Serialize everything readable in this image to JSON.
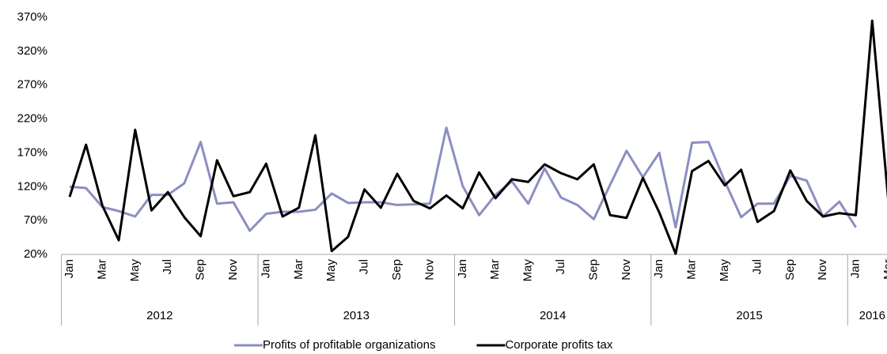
{
  "chart_data": {
    "type": "line",
    "categories": [
      "Jan",
      null,
      "Mar",
      null,
      "May",
      null,
      "Jul",
      null,
      "Sep",
      null,
      "Nov",
      null,
      "Jan",
      null,
      "Mar",
      null,
      "May",
      null,
      "Jul",
      null,
      "Sep",
      null,
      "Nov",
      null,
      "Jan",
      null,
      "Mar",
      null,
      "May",
      null,
      "Jul",
      null,
      "Sep",
      null,
      "Nov",
      null,
      "Jan",
      null,
      "Mar",
      null,
      "May",
      null,
      "Jul",
      null,
      "Sep",
      null,
      "Nov",
      null,
      "Jan",
      null,
      "Mar"
    ],
    "groups": [
      "2012",
      "2013",
      "2014",
      "2015",
      "2016"
    ],
    "series": [
      {
        "name": "Profits of profitable organizations",
        "color": "#8b8ec3",
        "values": [
          120,
          118,
          90,
          84,
          76,
          108,
          108,
          125,
          186,
          95,
          97,
          55,
          80,
          83,
          83,
          86,
          110,
          96,
          97,
          97,
          93,
          94,
          95,
          207,
          121,
          78,
          108,
          128,
          95,
          147,
          104,
          93,
          72,
          123,
          173,
          134,
          170,
          60,
          185,
          186,
          128,
          75,
          95,
          95,
          136,
          129,
          76,
          98,
          60,
          null,
          null
        ]
      },
      {
        "name": "Corporate profits tax",
        "color": "#000000",
        "values": [
          105,
          182,
          92,
          41,
          204,
          85,
          112,
          75,
          47,
          159,
          106,
          112,
          154,
          76,
          89,
          196,
          25,
          46,
          116,
          89,
          139,
          99,
          88,
          107,
          88,
          141,
          103,
          131,
          127,
          153,
          140,
          131,
          153,
          78,
          74,
          133,
          82,
          21,
          143,
          158,
          122,
          145,
          68,
          84,
          144,
          99,
          76,
          81,
          78,
          365,
          95
        ]
      }
    ],
    "ylim": [
      20,
      370
    ],
    "yticks": [
      {
        "value": 20,
        "label": "20%"
      },
      {
        "value": 70,
        "label": "70%"
      },
      {
        "value": 120,
        "label": "120%"
      },
      {
        "value": 170,
        "label": "170%"
      },
      {
        "value": 220,
        "label": "220%"
      },
      {
        "value": 270,
        "label": "270%"
      },
      {
        "value": 320,
        "label": "320%"
      },
      {
        "value": 370,
        "label": "370%"
      }
    ],
    "legend": "bottom"
  }
}
